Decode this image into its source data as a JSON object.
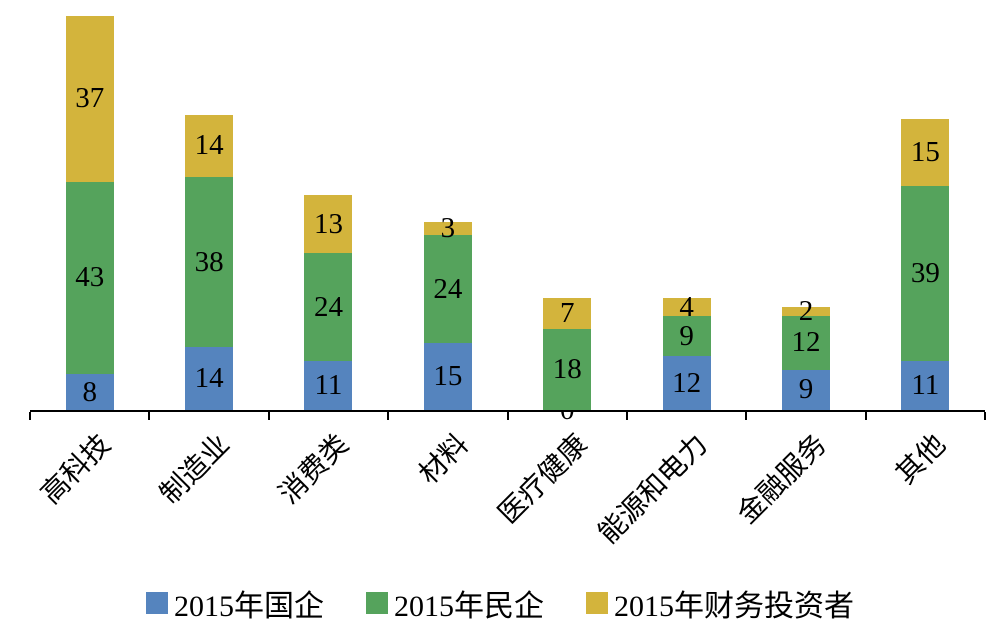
{
  "chart_data": {
    "type": "bar",
    "stacked": true,
    "categories": [
      "高科技",
      "制造业",
      "消费类",
      "材料",
      "医疗健康",
      "能源和电力",
      "金融服务",
      "其他"
    ],
    "series": [
      {
        "name": "2015年国企",
        "color": "#5584BE",
        "values": [
          8,
          14,
          11,
          15,
          0,
          12,
          9,
          11
        ]
      },
      {
        "name": "2015年民企",
        "color": "#55A35C",
        "values": [
          43,
          38,
          24,
          24,
          18,
          9,
          12,
          39
        ]
      },
      {
        "name": "2015年财务投资者",
        "color": "#D3B43C",
        "values": [
          37,
          14,
          13,
          3,
          7,
          4,
          2,
          15
        ]
      }
    ],
    "totals": [
      88,
      66,
      48,
      42,
      25,
      25,
      23,
      65
    ],
    "title": "",
    "xlabel": "",
    "ylabel": "",
    "ylim": [
      0,
      88
    ],
    "grid": false,
    "legend_position": "bottom",
    "value_labels": true,
    "axis_color": "#000000",
    "label_color": "#000000"
  }
}
